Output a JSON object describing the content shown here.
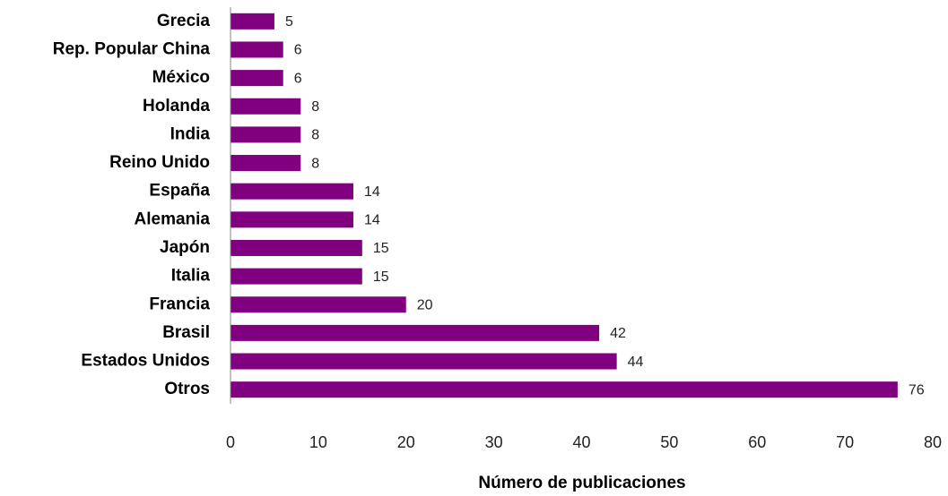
{
  "chart_data": {
    "type": "bar",
    "orientation": "horizontal",
    "x_label": "Número de publicaciones",
    "categories": [
      "Grecia",
      "Rep. Popular China",
      "México",
      "Holanda",
      "India",
      "Reino Unido",
      "España",
      "Alemania",
      "Japón",
      "Italia",
      "Francia",
      "Brasil",
      "Estados Unidos",
      "Otros"
    ],
    "values": [
      5,
      6,
      6,
      8,
      8,
      8,
      14,
      14,
      15,
      15,
      20,
      42,
      44,
      76
    ],
    "color": "#800080",
    "xlim": [
      0,
      80
    ],
    "xticks": [
      0,
      10,
      20,
      30,
      40,
      50,
      60,
      70,
      80
    ],
    "grid": false
  }
}
